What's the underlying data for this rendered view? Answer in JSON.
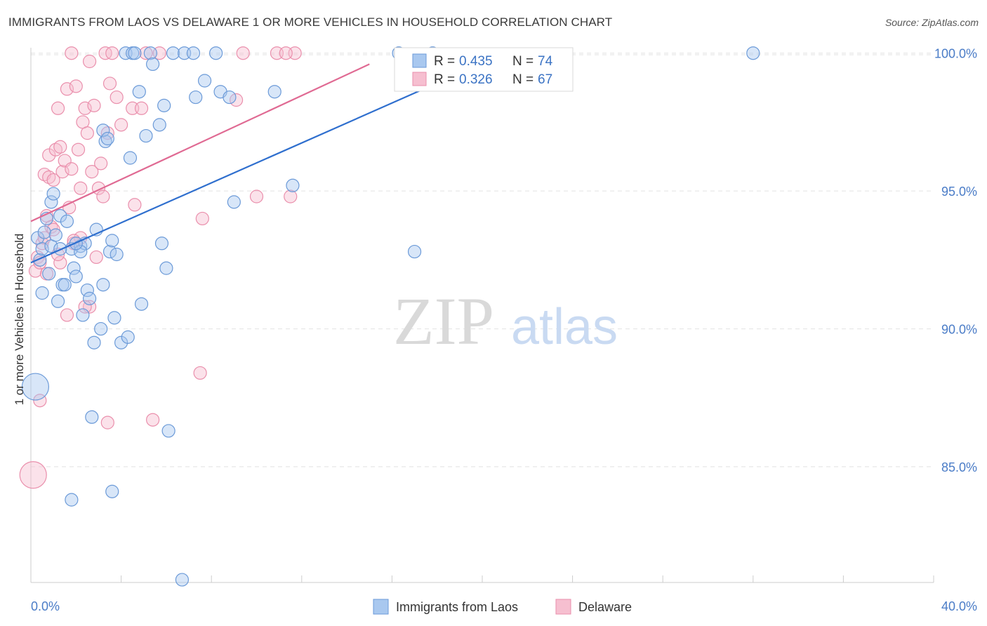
{
  "header": {
    "title": "IMMIGRANTS FROM LAOS VS DELAWARE 1 OR MORE VEHICLES IN HOUSEHOLD CORRELATION CHART",
    "source": "Source: ZipAtlas.com"
  },
  "watermark": {
    "zip": "ZIP",
    "atlas": "atlas"
  },
  "colors": {
    "blue_fill": "#a9c8ef",
    "blue_stroke": "#6b9ad8",
    "blue_line": "#2f6fce",
    "pink_fill": "#f6bfd0",
    "pink_stroke": "#ea8fac",
    "pink_line": "#e06a93",
    "grid": "#e2e2e2",
    "axis_text": "#4a7cc7"
  },
  "chart_data": {
    "type": "scatter",
    "title": "IMMIGRANTS FROM LAOS VS DELAWARE 1 OR MORE VEHICLES IN HOUSEHOLD CORRELATION CHART",
    "xlabel": "",
    "ylabel": "1 or more Vehicles in Household",
    "xlim": [
      0,
      40
    ],
    "ylim": [
      80.8,
      100.4
    ],
    "x_tick_labels": [
      "0.0%",
      "40.0%"
    ],
    "y_ticks": [
      100,
      95,
      90,
      85
    ],
    "y_tick_labels": [
      "100.0%",
      "95.0%",
      "90.0%",
      "85.0%"
    ],
    "grid": true,
    "legend_position": "top-center",
    "stats": [
      {
        "r_label": "R =",
        "r_value": "0.435",
        "n_label": "N =",
        "n_value": "74"
      },
      {
        "r_label": "R =",
        "r_value": "0.326",
        "n_label": "N =",
        "n_value": "67"
      }
    ],
    "series": [
      {
        "name": "Immigrants from Laos",
        "trend": {
          "x": [
            0.0,
            21.0
          ],
          "y": [
            92.4,
            100.0
          ]
        },
        "points": [
          {
            "x": 0.2,
            "y": 87.9,
            "big": true
          },
          {
            "x": 0.3,
            "y": 93.3
          },
          {
            "x": 0.4,
            "y": 92.5
          },
          {
            "x": 0.5,
            "y": 92.9
          },
          {
            "x": 0.6,
            "y": 93.5
          },
          {
            "x": 0.5,
            "y": 91.3
          },
          {
            "x": 0.7,
            "y": 94.0
          },
          {
            "x": 0.8,
            "y": 92.0
          },
          {
            "x": 0.9,
            "y": 93.0
          },
          {
            "x": 0.9,
            "y": 94.6
          },
          {
            "x": 1.0,
            "y": 94.9
          },
          {
            "x": 1.1,
            "y": 93.4
          },
          {
            "x": 1.2,
            "y": 91.0
          },
          {
            "x": 1.3,
            "y": 94.1
          },
          {
            "x": 1.4,
            "y": 91.6
          },
          {
            "x": 1.5,
            "y": 91.6
          },
          {
            "x": 1.6,
            "y": 93.9
          },
          {
            "x": 1.8,
            "y": 92.9
          },
          {
            "x": 1.9,
            "y": 92.2
          },
          {
            "x": 2.0,
            "y": 91.9
          },
          {
            "x": 2.2,
            "y": 93.0
          },
          {
            "x": 2.3,
            "y": 90.5
          },
          {
            "x": 2.4,
            "y": 93.1
          },
          {
            "x": 2.5,
            "y": 91.4
          },
          {
            "x": 2.6,
            "y": 91.1
          },
          {
            "x": 2.9,
            "y": 93.6
          },
          {
            "x": 2.8,
            "y": 89.5
          },
          {
            "x": 2.7,
            "y": 86.8
          },
          {
            "x": 3.1,
            "y": 90.0
          },
          {
            "x": 3.2,
            "y": 91.6
          },
          {
            "x": 3.3,
            "y": 96.8
          },
          {
            "x": 3.5,
            "y": 92.8
          },
          {
            "x": 3.6,
            "y": 93.2
          },
          {
            "x": 3.7,
            "y": 90.4
          },
          {
            "x": 3.8,
            "y": 92.7
          },
          {
            "x": 4.0,
            "y": 89.5
          },
          {
            "x": 4.3,
            "y": 89.7
          },
          {
            "x": 4.4,
            "y": 96.2
          },
          {
            "x": 4.9,
            "y": 90.9
          },
          {
            "x": 4.8,
            "y": 98.6
          },
          {
            "x": 5.1,
            "y": 97.0
          },
          {
            "x": 5.7,
            "y": 97.4
          },
          {
            "x": 5.9,
            "y": 98.1
          },
          {
            "x": 6.0,
            "y": 92.2
          },
          {
            "x": 6.3,
            "y": 100.0
          },
          {
            "x": 6.8,
            "y": 100.0
          },
          {
            "x": 7.2,
            "y": 100.0
          },
          {
            "x": 7.7,
            "y": 99.0
          },
          {
            "x": 8.4,
            "y": 98.6
          },
          {
            "x": 9.0,
            "y": 94.6
          },
          {
            "x": 10.8,
            "y": 98.6
          },
          {
            "x": 11.6,
            "y": 95.2
          },
          {
            "x": 16.3,
            "y": 100.0
          },
          {
            "x": 17.0,
            "y": 92.8
          },
          {
            "x": 17.8,
            "y": 100.0
          },
          {
            "x": 32.0,
            "y": 100.0
          },
          {
            "x": 4.2,
            "y": 100.0
          },
          {
            "x": 4.5,
            "y": 100.0
          },
          {
            "x": 5.3,
            "y": 100.0
          },
          {
            "x": 5.4,
            "y": 99.6
          },
          {
            "x": 3.2,
            "y": 97.2
          },
          {
            "x": 3.4,
            "y": 96.9
          },
          {
            "x": 4.6,
            "y": 100.0
          },
          {
            "x": 8.2,
            "y": 100.0
          },
          {
            "x": 7.3,
            "y": 98.4
          },
          {
            "x": 8.8,
            "y": 98.4
          },
          {
            "x": 5.8,
            "y": 93.1
          },
          {
            "x": 1.8,
            "y": 83.8
          },
          {
            "x": 3.6,
            "y": 84.1
          },
          {
            "x": 6.1,
            "y": 86.3
          },
          {
            "x": 6.7,
            "y": 80.9
          },
          {
            "x": 2.2,
            "y": 92.8
          },
          {
            "x": 1.3,
            "y": 92.9
          },
          {
            "x": 2.0,
            "y": 93.1
          }
        ]
      },
      {
        "name": "Delaware",
        "trend": {
          "x": [
            0.0,
            15.0
          ],
          "y": [
            93.9,
            99.6
          ]
        },
        "points": [
          {
            "x": 0.1,
            "y": 84.7,
            "big": true
          },
          {
            "x": 0.2,
            "y": 92.1
          },
          {
            "x": 0.3,
            "y": 92.6
          },
          {
            "x": 0.4,
            "y": 87.4
          },
          {
            "x": 0.5,
            "y": 93.1
          },
          {
            "x": 0.6,
            "y": 95.6
          },
          {
            "x": 0.7,
            "y": 94.1
          },
          {
            "x": 0.8,
            "y": 95.5
          },
          {
            "x": 0.8,
            "y": 96.3
          },
          {
            "x": 0.9,
            "y": 93.7
          },
          {
            "x": 1.0,
            "y": 95.4
          },
          {
            "x": 1.1,
            "y": 96.5
          },
          {
            "x": 1.2,
            "y": 98.0
          },
          {
            "x": 1.3,
            "y": 96.6
          },
          {
            "x": 1.4,
            "y": 95.7
          },
          {
            "x": 1.5,
            "y": 96.1
          },
          {
            "x": 1.6,
            "y": 98.7
          },
          {
            "x": 1.7,
            "y": 94.4
          },
          {
            "x": 1.8,
            "y": 95.8
          },
          {
            "x": 1.9,
            "y": 93.1
          },
          {
            "x": 2.0,
            "y": 98.8
          },
          {
            "x": 2.1,
            "y": 96.5
          },
          {
            "x": 2.2,
            "y": 95.1
          },
          {
            "x": 2.3,
            "y": 97.5
          },
          {
            "x": 2.4,
            "y": 98.0
          },
          {
            "x": 2.5,
            "y": 97.1
          },
          {
            "x": 2.6,
            "y": 90.8
          },
          {
            "x": 2.7,
            "y": 95.7
          },
          {
            "x": 2.8,
            "y": 98.1
          },
          {
            "x": 2.9,
            "y": 92.6
          },
          {
            "x": 3.0,
            "y": 95.1
          },
          {
            "x": 3.1,
            "y": 96.0
          },
          {
            "x": 3.2,
            "y": 94.8
          },
          {
            "x": 3.4,
            "y": 97.1
          },
          {
            "x": 3.5,
            "y": 98.9
          },
          {
            "x": 3.8,
            "y": 98.4
          },
          {
            "x": 4.0,
            "y": 97.4
          },
          {
            "x": 4.5,
            "y": 98.0
          },
          {
            "x": 4.6,
            "y": 94.5
          },
          {
            "x": 4.9,
            "y": 98.0
          },
          {
            "x": 5.4,
            "y": 86.7
          },
          {
            "x": 7.6,
            "y": 94.0
          },
          {
            "x": 7.5,
            "y": 88.4
          },
          {
            "x": 9.1,
            "y": 98.3
          },
          {
            "x": 10.0,
            "y": 94.8
          },
          {
            "x": 11.5,
            "y": 94.8
          },
          {
            "x": 1.8,
            "y": 100.0
          },
          {
            "x": 3.3,
            "y": 100.0
          },
          {
            "x": 3.4,
            "y": 86.6
          },
          {
            "x": 2.6,
            "y": 99.7
          },
          {
            "x": 5.1,
            "y": 100.0
          },
          {
            "x": 5.7,
            "y": 100.0
          },
          {
            "x": 9.4,
            "y": 100.0
          },
          {
            "x": 10.9,
            "y": 100.0
          },
          {
            "x": 11.7,
            "y": 100.0
          },
          {
            "x": 11.3,
            "y": 100.0
          },
          {
            "x": 1.6,
            "y": 90.5
          },
          {
            "x": 2.4,
            "y": 90.8
          },
          {
            "x": 1.3,
            "y": 92.4
          },
          {
            "x": 0.4,
            "y": 92.4
          },
          {
            "x": 0.7,
            "y": 92.0
          },
          {
            "x": 1.0,
            "y": 93.6
          },
          {
            "x": 1.2,
            "y": 92.7
          },
          {
            "x": 2.2,
            "y": 93.3
          },
          {
            "x": 0.6,
            "y": 93.3
          },
          {
            "x": 3.6,
            "y": 100.0
          },
          {
            "x": 1.9,
            "y": 93.2
          }
        ]
      }
    ],
    "legend": [
      "Immigrants from Laos",
      "Delaware"
    ]
  }
}
